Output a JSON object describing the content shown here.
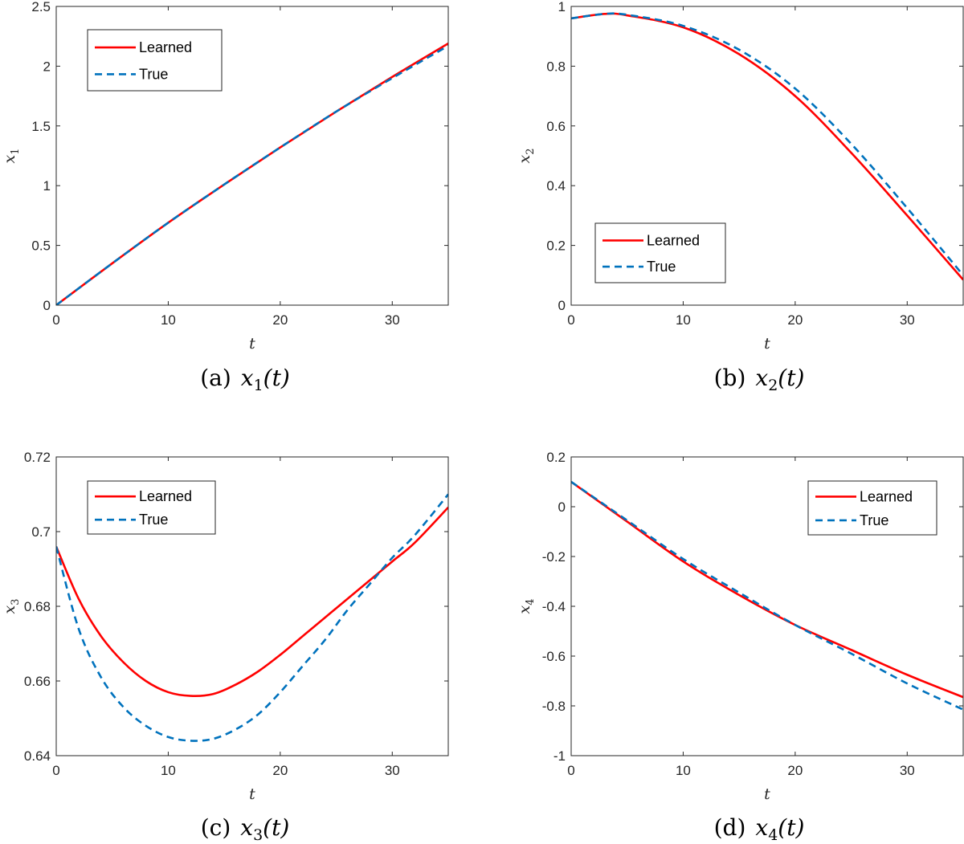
{
  "colors": {
    "learned": "#ff0000",
    "true": "#0072bd",
    "axis": "#262626"
  },
  "chart_data": [
    {
      "type": "line",
      "caption": {
        "label": "(a)",
        "var": "x",
        "sub": "1",
        "arg": "(t)"
      },
      "xlabel": "t",
      "ylabel": {
        "var": "x",
        "sub": "1"
      },
      "xlim": [
        0,
        35
      ],
      "ylim": [
        0,
        2.5
      ],
      "xticks": [
        0,
        10,
        20,
        30
      ],
      "xtick_labels": [
        "0",
        "10",
        "20",
        "30"
      ],
      "yticks": [
        0,
        0.5,
        1,
        1.5,
        2,
        2.5
      ],
      "ytick_labels": [
        "0",
        "0.5",
        "1",
        "1.5",
        "2",
        "2.5"
      ],
      "legend": "top-left",
      "grid": false,
      "series": [
        {
          "name": "Learned",
          "style": "solid",
          "x": [
            0,
            5,
            10,
            15,
            20,
            25,
            30,
            35
          ],
          "values": [
            0,
            0.35,
            0.69,
            1.01,
            1.32,
            1.62,
            1.91,
            2.19
          ]
        },
        {
          "name": "True",
          "style": "dashed",
          "x": [
            0,
            5,
            10,
            15,
            20,
            25,
            30,
            35
          ],
          "values": [
            0,
            0.35,
            0.69,
            1.01,
            1.32,
            1.62,
            1.9,
            2.17
          ]
        }
      ]
    },
    {
      "type": "line",
      "caption": {
        "label": "(b)",
        "var": "x",
        "sub": "2",
        "arg": "(t)"
      },
      "xlabel": "t",
      "ylabel": {
        "var": "x",
        "sub": "2"
      },
      "xlim": [
        0,
        35
      ],
      "ylim": [
        0,
        1
      ],
      "xticks": [
        0,
        10,
        20,
        30
      ],
      "xtick_labels": [
        "0",
        "10",
        "20",
        "30"
      ],
      "yticks": [
        0,
        0.2,
        0.4,
        0.6,
        0.8,
        1
      ],
      "ytick_labels": [
        "0",
        "0.2",
        "0.4",
        "0.6",
        "0.8",
        "1"
      ],
      "legend": "bottom-left",
      "grid": false,
      "series": [
        {
          "name": "Learned",
          "style": "solid",
          "x": [
            0,
            3,
            5,
            10,
            15,
            20,
            25,
            30,
            35
          ],
          "values": [
            0.96,
            0.975,
            0.97,
            0.93,
            0.84,
            0.7,
            0.51,
            0.3,
            0.085
          ]
        },
        {
          "name": "True",
          "style": "dashed",
          "x": [
            0,
            3,
            5,
            10,
            15,
            20,
            25,
            30,
            35
          ],
          "values": [
            0.96,
            0.975,
            0.972,
            0.935,
            0.855,
            0.725,
            0.54,
            0.325,
            0.1
          ]
        }
      ]
    },
    {
      "type": "line",
      "caption": {
        "label": "(c)",
        "var": "x",
        "sub": "3",
        "arg": "(t)"
      },
      "xlabel": "t",
      "ylabel": {
        "var": "x",
        "sub": "3"
      },
      "xlim": [
        0,
        35
      ],
      "ylim": [
        0.64,
        0.72
      ],
      "xticks": [
        0,
        10,
        20,
        30
      ],
      "xtick_labels": [
        "0",
        "10",
        "20",
        "30"
      ],
      "yticks": [
        0.64,
        0.66,
        0.68,
        0.7,
        0.72
      ],
      "ytick_labels": [
        "0.64",
        "0.66",
        "0.68",
        "0.7",
        "0.72"
      ],
      "legend": "top-left",
      "grid": false,
      "series": [
        {
          "name": "Learned",
          "style": "solid",
          "x": [
            0,
            2,
            4,
            6,
            8,
            10,
            12,
            14,
            16,
            18,
            20,
            22,
            24,
            26,
            28,
            30,
            32,
            35
          ],
          "values": [
            0.696,
            0.682,
            0.672,
            0.665,
            0.66,
            0.657,
            0.656,
            0.6565,
            0.659,
            0.6625,
            0.667,
            0.672,
            0.677,
            0.682,
            0.687,
            0.692,
            0.697,
            0.7065
          ]
        },
        {
          "name": "True",
          "style": "dashed",
          "x": [
            0,
            2,
            4,
            6,
            8,
            10,
            12,
            14,
            16,
            18,
            20,
            22,
            24,
            26,
            28,
            30,
            32,
            35
          ],
          "values": [
            0.696,
            0.674,
            0.661,
            0.653,
            0.648,
            0.645,
            0.644,
            0.6445,
            0.647,
            0.651,
            0.657,
            0.664,
            0.671,
            0.679,
            0.686,
            0.693,
            0.699,
            0.71
          ]
        }
      ]
    },
    {
      "type": "line",
      "caption": {
        "label": "(d)",
        "var": "x",
        "sub": "4",
        "arg": "(t)"
      },
      "xlabel": "t",
      "ylabel": {
        "var": "x",
        "sub": "4"
      },
      "xlim": [
        0,
        35
      ],
      "ylim": [
        -1,
        0.2
      ],
      "xticks": [
        0,
        10,
        20,
        30
      ],
      "xtick_labels": [
        "0",
        "10",
        "20",
        "30"
      ],
      "yticks": [
        -1,
        -0.8,
        -0.6,
        -0.4,
        -0.2,
        0,
        0.2
      ],
      "ytick_labels": [
        "-1",
        "-0.8",
        "-0.6",
        "-0.4",
        "-0.2",
        "0",
        "0.2"
      ],
      "legend": "top-right",
      "grid": false,
      "series": [
        {
          "name": "Learned",
          "style": "solid",
          "x": [
            0,
            5,
            10,
            15,
            20,
            25,
            30,
            35
          ],
          "values": [
            0.1,
            -0.06,
            -0.22,
            -0.355,
            -0.475,
            -0.575,
            -0.675,
            -0.765
          ]
        },
        {
          "name": "True",
          "style": "dashed",
          "x": [
            0,
            5,
            10,
            15,
            20,
            25,
            30,
            35
          ],
          "values": [
            0.1,
            -0.055,
            -0.21,
            -0.345,
            -0.475,
            -0.59,
            -0.71,
            -0.815
          ]
        }
      ]
    }
  ]
}
